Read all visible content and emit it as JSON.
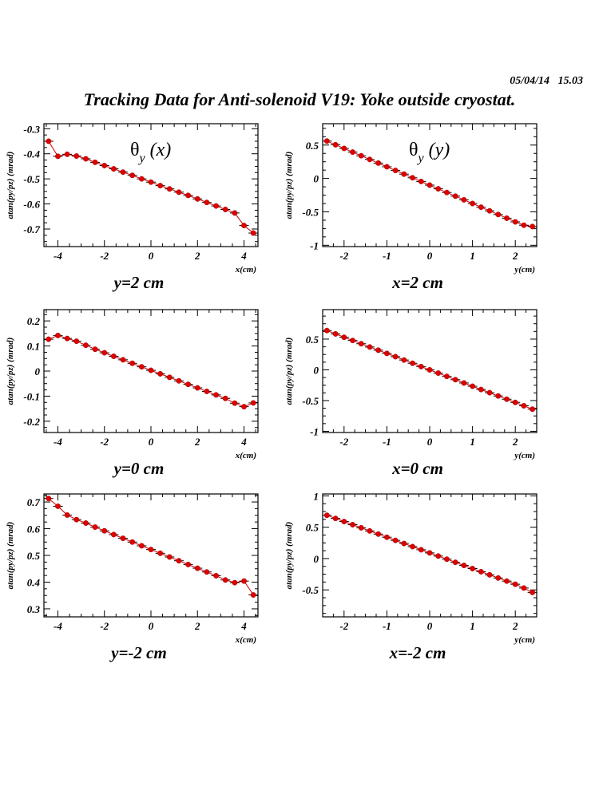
{
  "header": {
    "timestamp": "05/04/14   15.03",
    "title": "Tracking Data for Anti-solenoid V19: Yoke outside cryostat."
  },
  "chart_data": [
    {
      "type": "scatter",
      "plot_label": {
        "symbol": "θ",
        "sub": "y",
        "var": "(x)"
      },
      "subtitle": "y=2 cm",
      "xlabel": "x(cm)",
      "ylabel": "atan(py/pz) (mrad)",
      "xlim": [
        -4.6,
        4.6
      ],
      "ylim": [
        -0.77,
        -0.28
      ],
      "xticks": [
        -4,
        -2,
        0,
        2,
        4
      ],
      "xtick_labels": [
        "-4",
        "-2",
        "0",
        "2",
        "4"
      ],
      "yticks": [
        -0.3,
        -0.4,
        -0.5,
        -0.6,
        -0.7
      ],
      "ytick_labels": [
        "-0.3",
        "-0.4",
        "-0.5",
        "-0.6",
        "-0.7"
      ],
      "x": [
        -4.4,
        -4.0,
        -3.6,
        -3.2,
        -2.8,
        -2.4,
        -2.0,
        -1.6,
        -1.2,
        -0.8,
        -0.4,
        0.0,
        0.4,
        0.8,
        1.2,
        1.6,
        2.0,
        2.4,
        2.8,
        3.2,
        3.6,
        4.0,
        4.4
      ],
      "y": [
        -0.35,
        -0.41,
        -0.402,
        -0.409,
        -0.42,
        -0.434,
        -0.447,
        -0.46,
        -0.473,
        -0.486,
        -0.5,
        -0.513,
        -0.527,
        -0.54,
        -0.553,
        -0.566,
        -0.58,
        -0.594,
        -0.608,
        -0.622,
        -0.636,
        -0.686,
        -0.716
      ]
    },
    {
      "type": "scatter",
      "plot_label": {
        "symbol": "θ",
        "sub": "y",
        "var": "(y)"
      },
      "subtitle": "x=2 cm",
      "xlabel": "y(cm)",
      "ylabel": "atan(py/pz) (mrad)",
      "xlim": [
        -2.5,
        2.5
      ],
      "ylim": [
        -1.02,
        0.82
      ],
      "xticks": [
        -2,
        -1,
        0,
        1,
        2
      ],
      "xtick_labels": [
        "-2",
        "-1",
        "0",
        "1",
        "2"
      ],
      "yticks": [
        0.5,
        0,
        -0.5,
        -1
      ],
      "ytick_labels": [
        "0.5",
        "0",
        "-0.5",
        "-1"
      ],
      "x": [
        -2.4,
        -2.2,
        -2.0,
        -1.8,
        -1.6,
        -1.4,
        -1.2,
        -1.0,
        -0.8,
        -0.6,
        -0.4,
        -0.2,
        0.0,
        0.2,
        0.4,
        0.6,
        0.8,
        1.0,
        1.2,
        1.4,
        1.6,
        1.8,
        2.0,
        2.2,
        2.4
      ],
      "y": [
        0.56,
        0.505,
        0.45,
        0.395,
        0.34,
        0.285,
        0.23,
        0.175,
        0.12,
        0.065,
        0.01,
        -0.045,
        -0.1,
        -0.155,
        -0.21,
        -0.265,
        -0.32,
        -0.375,
        -0.43,
        -0.485,
        -0.54,
        -0.595,
        -0.65,
        -0.7,
        -0.72
      ]
    },
    {
      "type": "scatter",
      "subtitle": "y=0 cm",
      "xlabel": "x(cm)",
      "ylabel": "atan(py/pz) (mrad)",
      "xlim": [
        -4.6,
        4.6
      ],
      "ylim": [
        -0.245,
        0.245
      ],
      "xticks": [
        -4,
        -2,
        0,
        2,
        4
      ],
      "xtick_labels": [
        "-4",
        "-2",
        "0",
        "2",
        "4"
      ],
      "yticks": [
        0.2,
        0.1,
        0,
        -0.1,
        -0.2
      ],
      "ytick_labels": [
        "0.2",
        "0.1",
        "0",
        "-0.1",
        "-0.2"
      ],
      "x": [
        -4.4,
        -4.0,
        -3.6,
        -3.2,
        -2.8,
        -2.4,
        -2.0,
        -1.6,
        -1.2,
        -0.8,
        -0.4,
        0.0,
        0.4,
        0.8,
        1.2,
        1.6,
        2.0,
        2.4,
        2.8,
        3.2,
        3.6,
        4.0,
        4.4
      ],
      "y": [
        0.127,
        0.142,
        0.13,
        0.119,
        0.103,
        0.087,
        0.073,
        0.059,
        0.045,
        0.031,
        0.017,
        0.003,
        -0.011,
        -0.025,
        -0.039,
        -0.053,
        -0.067,
        -0.081,
        -0.095,
        -0.109,
        -0.128,
        -0.142,
        -0.127
      ]
    },
    {
      "type": "scatter",
      "subtitle": "x=0 cm",
      "xlabel": "y(cm)",
      "ylabel": "atan(py/pz) (mrad)",
      "xlim": [
        -2.5,
        2.5
      ],
      "ylim": [
        -1.02,
        0.98
      ],
      "xticks": [
        -2,
        -1,
        0,
        1,
        2
      ],
      "xtick_labels": [
        "-2",
        "-1",
        "0",
        "1",
        "2"
      ],
      "yticks": [
        0.5,
        0,
        -0.5,
        -1
      ],
      "ytick_labels": [
        "0.5",
        "0",
        "-0.5",
        "-1"
      ],
      "x": [
        -2.4,
        -2.2,
        -2.0,
        -1.8,
        -1.6,
        -1.4,
        -1.2,
        -1.0,
        -0.8,
        -0.6,
        -0.4,
        -0.2,
        0.0,
        0.2,
        0.4,
        0.6,
        0.8,
        1.0,
        1.2,
        1.4,
        1.6,
        1.8,
        2.0,
        2.2,
        2.4
      ],
      "y": [
        0.64,
        0.585,
        0.53,
        0.478,
        0.425,
        0.372,
        0.32,
        0.267,
        0.214,
        0.16,
        0.107,
        0.053,
        0.0,
        -0.053,
        -0.107,
        -0.16,
        -0.214,
        -0.267,
        -0.32,
        -0.372,
        -0.425,
        -0.478,
        -0.53,
        -0.585,
        -0.64
      ]
    },
    {
      "type": "scatter",
      "subtitle": "y=-2 cm",
      "xlabel": "x(cm)",
      "ylabel": "atan(py/pz) (mrad)",
      "xlim": [
        -4.6,
        4.6
      ],
      "ylim": [
        0.27,
        0.73
      ],
      "xticks": [
        -4,
        -2,
        0,
        2,
        4
      ],
      "xtick_labels": [
        "-4",
        "-2",
        "0",
        "2",
        "4"
      ],
      "yticks": [
        0.7,
        0.6,
        0.5,
        0.4,
        0.3
      ],
      "ytick_labels": [
        "0.7",
        "0.6",
        "0.5",
        "0.4",
        "0.3"
      ],
      "x": [
        -4.4,
        -4.0,
        -3.6,
        -3.2,
        -2.8,
        -2.4,
        -2.0,
        -1.6,
        -1.2,
        -0.8,
        -0.4,
        0.0,
        0.4,
        0.8,
        1.2,
        1.6,
        2.0,
        2.4,
        2.8,
        3.2,
        3.6,
        4.0,
        4.4
      ],
      "y": [
        0.713,
        0.684,
        0.651,
        0.634,
        0.621,
        0.606,
        0.592,
        0.578,
        0.564,
        0.55,
        0.536,
        0.522,
        0.508,
        0.494,
        0.48,
        0.466,
        0.452,
        0.438,
        0.424,
        0.408,
        0.398,
        0.404,
        0.352
      ]
    },
    {
      "type": "scatter",
      "subtitle": "x=-2 cm",
      "xlabel": "y(cm)",
      "ylabel": "atan(py/pz) (mrad)",
      "xlim": [
        -2.5,
        2.5
      ],
      "ylim": [
        -0.93,
        1.03
      ],
      "xticks": [
        -2,
        -1,
        0,
        1,
        2
      ],
      "xtick_labels": [
        "-2",
        "-1",
        "0",
        "1",
        "2"
      ],
      "yticks": [
        1,
        0.5,
        0,
        -0.5
      ],
      "ytick_labels": [
        "1",
        "0.5",
        "0",
        "-0.5"
      ],
      "x": [
        -2.4,
        -2.2,
        -2.0,
        -1.8,
        -1.6,
        -1.4,
        -1.2,
        -1.0,
        -0.8,
        -0.6,
        -0.4,
        -0.2,
        0.0,
        0.2,
        0.4,
        0.6,
        0.8,
        1.0,
        1.2,
        1.4,
        1.6,
        1.8,
        2.0,
        2.2,
        2.4
      ],
      "y": [
        0.69,
        0.64,
        0.59,
        0.54,
        0.49,
        0.44,
        0.39,
        0.34,
        0.29,
        0.24,
        0.19,
        0.14,
        0.09,
        0.04,
        -0.01,
        -0.06,
        -0.11,
        -0.16,
        -0.21,
        -0.26,
        -0.31,
        -0.36,
        -0.41,
        -0.47,
        -0.54
      ]
    }
  ]
}
